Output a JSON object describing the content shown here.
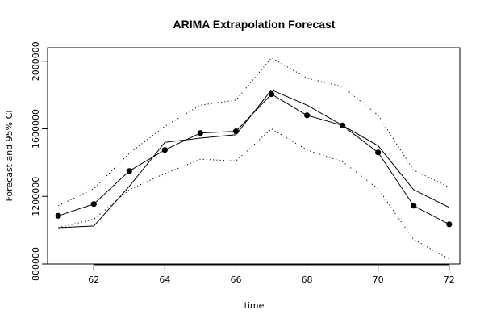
{
  "chart_data": {
    "type": "line",
    "title": "ARIMA Extrapolation Forecast",
    "xlabel": "time",
    "ylabel": "Forecast and 95% CI",
    "xlim": [
      60.7,
      72.3
    ],
    "ylim": [
      800000,
      2080000
    ],
    "x_ticks": [
      "62",
      "64",
      "66",
      "68",
      "70",
      "72"
    ],
    "y_ticks": [
      "800000",
      "1200000",
      "1600000",
      "2000000"
    ],
    "grid": false,
    "legend": "none",
    "series": [
      {
        "role": "actual",
        "style": "solid",
        "x": [
          61,
          62,
          63,
          64,
          65,
          66,
          67,
          68,
          69,
          70,
          71,
          72
        ],
        "values": [
          1015000,
          1025000,
          1260000,
          1520000,
          1545000,
          1565000,
          1830000,
          1740000,
          1620000,
          1500000,
          1240000,
          1135000
        ]
      },
      {
        "role": "forecast",
        "style": "line-with-points",
        "x": [
          61,
          62,
          63,
          64,
          65,
          66,
          67,
          68,
          69,
          70,
          71,
          72
        ],
        "values": [
          1085000,
          1155000,
          1350000,
          1475000,
          1575000,
          1585000,
          1805000,
          1680000,
          1620000,
          1460000,
          1145000,
          1035000
        ]
      },
      {
        "role": "upper-95",
        "style": "dotted",
        "x": [
          61,
          62,
          63,
          64,
          65,
          66,
          67,
          68,
          69,
          70,
          71,
          72
        ],
        "values": [
          1145000,
          1245000,
          1455000,
          1615000,
          1740000,
          1770000,
          2020000,
          1900000,
          1850000,
          1680000,
          1355000,
          1255000
        ]
      },
      {
        "role": "lower-95",
        "style": "dotted",
        "x": [
          61,
          62,
          63,
          64,
          65,
          66,
          67,
          68,
          69,
          70,
          71,
          72
        ],
        "values": [
          1015000,
          1065000,
          1240000,
          1335000,
          1420000,
          1410000,
          1600000,
          1475000,
          1405000,
          1245000,
          945000,
          830000
        ]
      }
    ]
  }
}
